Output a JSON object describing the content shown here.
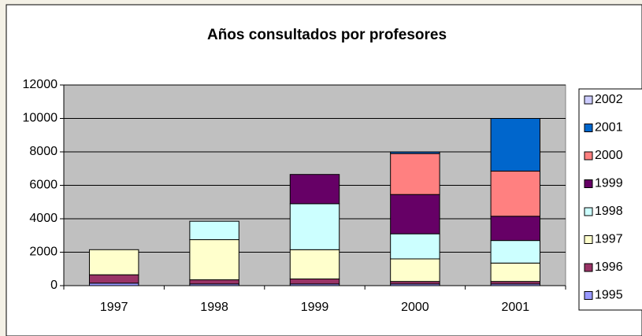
{
  "chart_data": {
    "type": "stacked_bar",
    "title": "Años consultados por profesores",
    "categories": [
      "1997",
      "1998",
      "1999",
      "2000",
      "2001"
    ],
    "series": [
      {
        "name": "1995",
        "color": "#9999FF",
        "values": [
          150,
          100,
          100,
          100,
          100
        ]
      },
      {
        "name": "1996",
        "color": "#993366",
        "values": [
          500,
          250,
          300,
          150,
          150
        ]
      },
      {
        "name": "1997",
        "color": "#FFFFCC",
        "values": [
          1500,
          2400,
          1750,
          1350,
          1100
        ]
      },
      {
        "name": "1998",
        "color": "#CCFFFF",
        "values": [
          0,
          1100,
          2750,
          1500,
          1350
        ]
      },
      {
        "name": "1999",
        "color": "#660066",
        "values": [
          0,
          0,
          1750,
          2350,
          1450
        ]
      },
      {
        "name": "2000",
        "color": "#FF8080",
        "values": [
          0,
          0,
          0,
          2450,
          2700
        ]
      },
      {
        "name": "2001",
        "color": "#0066CC",
        "values": [
          0,
          0,
          0,
          100,
          3150
        ]
      },
      {
        "name": "2002",
        "color": "#CCCCFF",
        "values": [
          0,
          0,
          0,
          0,
          0
        ]
      }
    ],
    "ylim": [
      0,
      12000
    ],
    "yticks": [
      0,
      2000,
      4000,
      6000,
      8000,
      10000,
      12000
    ],
    "grid": true,
    "legend": "right"
  }
}
